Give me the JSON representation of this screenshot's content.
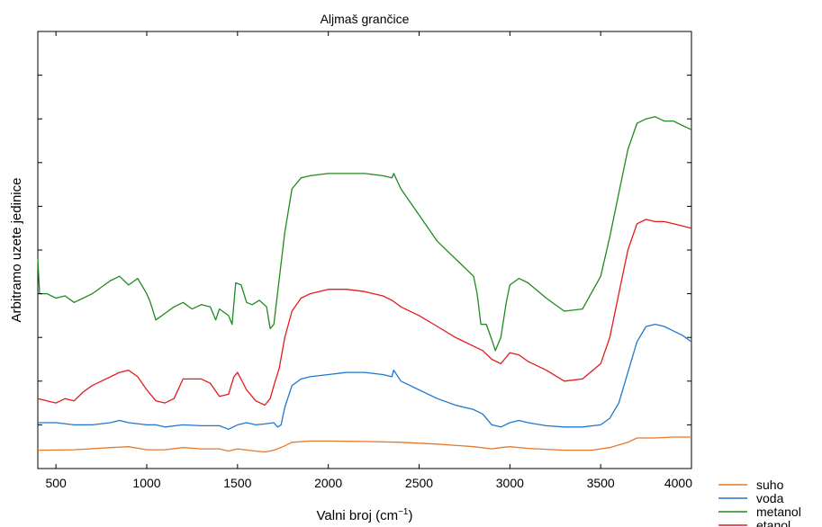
{
  "chart_data": {
    "type": "line",
    "title": "Aljmaš grančice",
    "xlabel": "Valni broj (cm",
    "xlabel_sup": "−1",
    "xlabel_close": ")",
    "ylabel": "Arbitramo uzete jedinice",
    "xlim": [
      400,
      4000
    ],
    "ylim": [
      0,
      100
    ],
    "x_ticks": [
      500,
      1000,
      1500,
      2000,
      2500,
      3000,
      3500,
      4000
    ],
    "x_tick_labels": [
      "500",
      "1000",
      "1500",
      "2000",
      "2500",
      "3000",
      "3500",
      "4000"
    ],
    "y_ticks": [
      10,
      20,
      30,
      40,
      50,
      60,
      70,
      80,
      90
    ],
    "y_tick_labels_shown": false,
    "grid": false,
    "legend_position": "outside-bottom-right",
    "series": [
      {
        "name": "suho",
        "color": "#e8782a",
        "points": [
          [
            400,
            4.2
          ],
          [
            600,
            4.3
          ],
          [
            800,
            4.8
          ],
          [
            900,
            5.0
          ],
          [
            1000,
            4.3
          ],
          [
            1100,
            4.3
          ],
          [
            1200,
            4.8
          ],
          [
            1300,
            4.5
          ],
          [
            1400,
            4.5
          ],
          [
            1450,
            4.0
          ],
          [
            1500,
            4.5
          ],
          [
            1600,
            4.0
          ],
          [
            1650,
            3.8
          ],
          [
            1700,
            4.2
          ],
          [
            1750,
            5.0
          ],
          [
            1800,
            6.0
          ],
          [
            1900,
            6.3
          ],
          [
            2000,
            6.3
          ],
          [
            2200,
            6.2
          ],
          [
            2400,
            6.0
          ],
          [
            2600,
            5.6
          ],
          [
            2800,
            5.0
          ],
          [
            2900,
            4.5
          ],
          [
            2950,
            4.8
          ],
          [
            3000,
            5.0
          ],
          [
            3100,
            4.6
          ],
          [
            3300,
            4.2
          ],
          [
            3450,
            4.2
          ],
          [
            3550,
            4.8
          ],
          [
            3650,
            6.0
          ],
          [
            3700,
            7.0
          ],
          [
            3800,
            7.0
          ],
          [
            3900,
            7.2
          ],
          [
            4000,
            7.2
          ]
        ]
      },
      {
        "name": "voda",
        "color": "#1f77d0",
        "points": [
          [
            400,
            10.5
          ],
          [
            500,
            10.5
          ],
          [
            600,
            10.0
          ],
          [
            700,
            10.0
          ],
          [
            800,
            10.5
          ],
          [
            850,
            11.0
          ],
          [
            900,
            10.5
          ],
          [
            1000,
            10.0
          ],
          [
            1050,
            10.0
          ],
          [
            1100,
            9.5
          ],
          [
            1200,
            10.0
          ],
          [
            1300,
            9.8
          ],
          [
            1400,
            9.8
          ],
          [
            1450,
            9.0
          ],
          [
            1500,
            10.0
          ],
          [
            1550,
            10.5
          ],
          [
            1600,
            10.0
          ],
          [
            1650,
            10.2
          ],
          [
            1700,
            10.5
          ],
          [
            1720,
            9.5
          ],
          [
            1740,
            10.0
          ],
          [
            1760,
            14.0
          ],
          [
            1800,
            19.0
          ],
          [
            1850,
            20.5
          ],
          [
            1900,
            21.0
          ],
          [
            2000,
            21.5
          ],
          [
            2100,
            22.0
          ],
          [
            2200,
            22.0
          ],
          [
            2300,
            21.5
          ],
          [
            2350,
            21.0
          ],
          [
            2360,
            22.5
          ],
          [
            2400,
            20.0
          ],
          [
            2500,
            18.0
          ],
          [
            2600,
            16.0
          ],
          [
            2700,
            14.5
          ],
          [
            2800,
            13.5
          ],
          [
            2850,
            12.5
          ],
          [
            2900,
            10.0
          ],
          [
            2950,
            9.5
          ],
          [
            3000,
            10.5
          ],
          [
            3050,
            11.0
          ],
          [
            3100,
            10.5
          ],
          [
            3200,
            9.8
          ],
          [
            3300,
            9.5
          ],
          [
            3400,
            9.5
          ],
          [
            3500,
            10.0
          ],
          [
            3550,
            11.5
          ],
          [
            3600,
            15.0
          ],
          [
            3650,
            22.0
          ],
          [
            3700,
            29.0
          ],
          [
            3750,
            32.5
          ],
          [
            3800,
            33.0
          ],
          [
            3850,
            32.5
          ],
          [
            3900,
            31.5
          ],
          [
            3950,
            30.5
          ],
          [
            4000,
            29.0
          ]
        ]
      },
      {
        "name": "metanol",
        "color": "#1f8a1f",
        "points": [
          [
            400,
            48.0
          ],
          [
            410,
            40.0
          ],
          [
            450,
            40.0
          ],
          [
            500,
            39.0
          ],
          [
            550,
            39.5
          ],
          [
            600,
            38.0
          ],
          [
            650,
            39.0
          ],
          [
            700,
            40.0
          ],
          [
            800,
            43.0
          ],
          [
            850,
            44.0
          ],
          [
            900,
            42.0
          ],
          [
            950,
            43.5
          ],
          [
            1000,
            40.0
          ],
          [
            1020,
            38.0
          ],
          [
            1050,
            34.0
          ],
          [
            1100,
            35.5
          ],
          [
            1150,
            37.0
          ],
          [
            1200,
            38.0
          ],
          [
            1250,
            36.5
          ],
          [
            1300,
            37.5
          ],
          [
            1350,
            37.0
          ],
          [
            1380,
            34.0
          ],
          [
            1400,
            36.5
          ],
          [
            1450,
            35.0
          ],
          [
            1470,
            33.0
          ],
          [
            1490,
            42.5
          ],
          [
            1520,
            42.0
          ],
          [
            1550,
            38.0
          ],
          [
            1580,
            37.5
          ],
          [
            1620,
            38.5
          ],
          [
            1660,
            37.0
          ],
          [
            1680,
            32.0
          ],
          [
            1700,
            33.0
          ],
          [
            1720,
            40.0
          ],
          [
            1760,
            54.0
          ],
          [
            1800,
            64.0
          ],
          [
            1850,
            66.5
          ],
          [
            1900,
            67.0
          ],
          [
            2000,
            67.5
          ],
          [
            2100,
            67.5
          ],
          [
            2200,
            67.5
          ],
          [
            2300,
            67.0
          ],
          [
            2350,
            66.5
          ],
          [
            2360,
            67.5
          ],
          [
            2400,
            64.0
          ],
          [
            2500,
            58.0
          ],
          [
            2600,
            52.0
          ],
          [
            2700,
            48.0
          ],
          [
            2800,
            44.0
          ],
          [
            2820,
            40.0
          ],
          [
            2840,
            33.0
          ],
          [
            2870,
            33.0
          ],
          [
            2900,
            29.5
          ],
          [
            2920,
            27.0
          ],
          [
            2950,
            30.0
          ],
          [
            2980,
            38.0
          ],
          [
            3000,
            42.0
          ],
          [
            3050,
            43.5
          ],
          [
            3100,
            42.5
          ],
          [
            3200,
            39.0
          ],
          [
            3300,
            36.0
          ],
          [
            3400,
            36.5
          ],
          [
            3500,
            44.0
          ],
          [
            3550,
            53.0
          ],
          [
            3600,
            63.0
          ],
          [
            3650,
            73.0
          ],
          [
            3700,
            79.0
          ],
          [
            3750,
            80.0
          ],
          [
            3800,
            80.5
          ],
          [
            3850,
            79.5
          ],
          [
            3900,
            79.5
          ],
          [
            3950,
            78.5
          ],
          [
            4000,
            77.5
          ]
        ]
      },
      {
        "name": "etanol",
        "color": "#e41a1c",
        "points": [
          [
            400,
            16.0
          ],
          [
            450,
            15.5
          ],
          [
            500,
            15.0
          ],
          [
            550,
            16.0
          ],
          [
            600,
            15.5
          ],
          [
            650,
            17.5
          ],
          [
            700,
            19.0
          ],
          [
            800,
            21.0
          ],
          [
            850,
            22.0
          ],
          [
            900,
            22.5
          ],
          [
            950,
            21.0
          ],
          [
            1000,
            18.0
          ],
          [
            1050,
            15.5
          ],
          [
            1100,
            15.0
          ],
          [
            1150,
            16.0
          ],
          [
            1200,
            20.5
          ],
          [
            1250,
            20.5
          ],
          [
            1300,
            20.5
          ],
          [
            1350,
            19.5
          ],
          [
            1400,
            16.5
          ],
          [
            1450,
            17.0
          ],
          [
            1480,
            21.0
          ],
          [
            1500,
            22.0
          ],
          [
            1550,
            18.0
          ],
          [
            1600,
            15.5
          ],
          [
            1650,
            14.5
          ],
          [
            1680,
            16.0
          ],
          [
            1700,
            19.0
          ],
          [
            1730,
            23.0
          ],
          [
            1760,
            30.0
          ],
          [
            1800,
            36.0
          ],
          [
            1850,
            39.0
          ],
          [
            1900,
            40.0
          ],
          [
            2000,
            41.0
          ],
          [
            2100,
            41.0
          ],
          [
            2200,
            40.5
          ],
          [
            2300,
            39.5
          ],
          [
            2350,
            38.5
          ],
          [
            2400,
            37.0
          ],
          [
            2500,
            35.0
          ],
          [
            2600,
            32.5
          ],
          [
            2700,
            30.0
          ],
          [
            2800,
            28.0
          ],
          [
            2850,
            27.0
          ],
          [
            2900,
            25.0
          ],
          [
            2950,
            24.0
          ],
          [
            3000,
            26.5
          ],
          [
            3050,
            26.0
          ],
          [
            3100,
            24.5
          ],
          [
            3200,
            22.5
          ],
          [
            3300,
            20.0
          ],
          [
            3400,
            20.5
          ],
          [
            3500,
            24.0
          ],
          [
            3550,
            30.0
          ],
          [
            3600,
            40.0
          ],
          [
            3650,
            50.0
          ],
          [
            3700,
            56.0
          ],
          [
            3750,
            57.0
          ],
          [
            3800,
            56.5
          ],
          [
            3850,
            56.5
          ],
          [
            3900,
            56.0
          ],
          [
            3950,
            55.5
          ],
          [
            4000,
            55.0
          ]
        ]
      }
    ]
  }
}
